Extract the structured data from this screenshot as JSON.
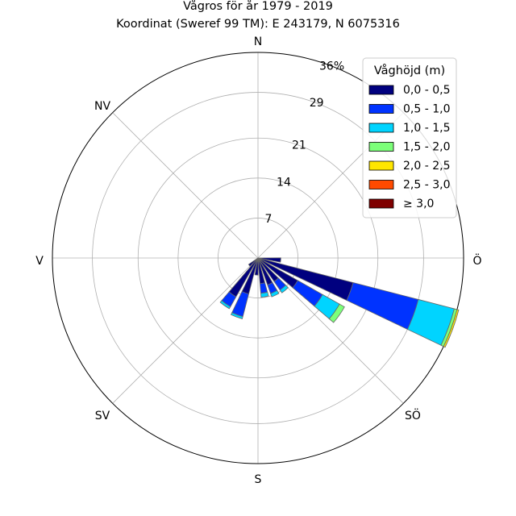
{
  "chart_data": {
    "type": "windrose",
    "title": "Vågros för år 1979 - 2019",
    "subtitle": "Koordinat (Sweref 99 TM): E 243179, N 6075316",
    "directions": [
      "N",
      "NV",
      "V",
      "SV",
      "S",
      "SÖ",
      "Ö"
    ],
    "radial_ticks": [
      "7",
      "14",
      "21",
      "29",
      "36%"
    ],
    "radial_tick_values": [
      7,
      14,
      21,
      29,
      36
    ],
    "r_max": 36,
    "legend": {
      "title": "Våghöjd (m)",
      "placement": "top-right",
      "entries": [
        "0,0 - 0,5",
        "0,5 - 1,0",
        "1,0 - 1,5",
        "1,5 - 2,0",
        "2,0 - 2,5",
        "2,5 - 3,0",
        "≥ 3,0"
      ],
      "colors": [
        "#00007f",
        "#0033ff",
        "#00d4ff",
        "#7cff79",
        "#ffe600",
        "#ff4a00",
        "#7f0000"
      ]
    },
    "sectors": [
      {
        "direction_deg": 95,
        "cumulative": [
          4.0
        ]
      },
      {
        "direction_deg": 110,
        "cumulative": [
          17.2,
          29.0,
          35.5,
          36.0,
          36.3
        ]
      },
      {
        "direction_deg": 125,
        "cumulative": [
          8.0,
          13.0,
          16.4,
          17.4
        ]
      },
      {
        "direction_deg": 140,
        "cumulative": [
          5.0,
          6.8,
          7.4
        ]
      },
      {
        "direction_deg": 155,
        "cumulative": [
          5.0,
          6.6,
          7.2
        ]
      },
      {
        "direction_deg": 170,
        "cumulative": [
          4.5,
          6.2,
          6.9
        ]
      },
      {
        "direction_deg": 185,
        "cumulative": [
          3.0
        ]
      },
      {
        "direction_deg": 200,
        "cumulative": [
          6.5,
          10.6,
          11.0
        ]
      },
      {
        "direction_deg": 215,
        "cumulative": [
          7.8,
          9.8,
          10.2
        ]
      },
      {
        "direction_deg": 230,
        "cumulative": [
          2.0
        ]
      }
    ]
  }
}
